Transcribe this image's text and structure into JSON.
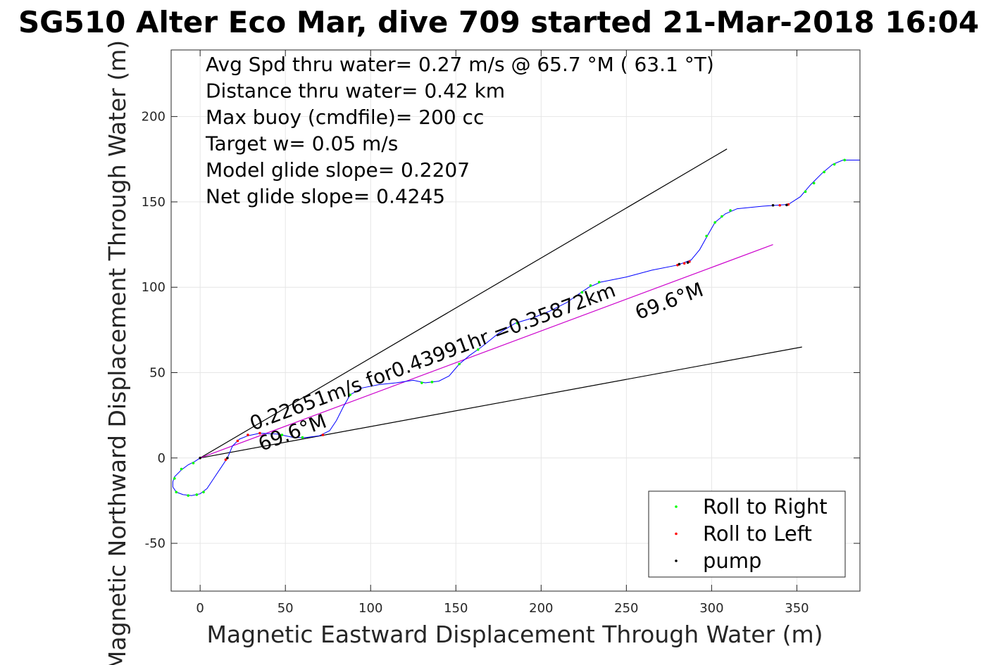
{
  "chart_data": {
    "type": "line",
    "title": "SG510 Alter Eco Mar, dive 709 started 21-Mar-2018 16:04",
    "xlabel": "Magnetic Eastward Displacement Through Water (m)",
    "ylabel": "Magnetic Northward Displacement Through Water (m)",
    "xlim": [
      -17,
      387
    ],
    "ylim": [
      -78,
      239
    ],
    "xticks": [
      0,
      50,
      100,
      150,
      200,
      250,
      300,
      350
    ],
    "yticks": [
      -50,
      0,
      50,
      100,
      150,
      200
    ],
    "xtick_labels": [
      "0",
      "50",
      "100",
      "150",
      "200",
      "250",
      "300",
      "350"
    ],
    "ytick_labels": [
      "-50",
      "0",
      "50",
      "100",
      "150",
      "200"
    ],
    "grid": true,
    "info_lines": [
      "Avg Spd thru water=  0.27 m/s @  65.7 °M ( 63.1 °T)",
      "Distance thru water=  0.42 km",
      "Max buoy (cmdfile)= 200 cc",
      "Target w= 0.05 m/s",
      "Model glide slope= 0.2207",
      "Net glide slope= 0.4245"
    ],
    "track": {
      "color": "#0000ff",
      "points": [
        [
          0,
          0
        ],
        [
          -3,
          -2
        ],
        [
          -7,
          -4
        ],
        [
          -11,
          -7
        ],
        [
          -15,
          -11
        ],
        [
          -16,
          -14
        ],
        [
          -16,
          -17
        ],
        [
          -14,
          -20
        ],
        [
          -10,
          -21.5
        ],
        [
          -5,
          -22
        ],
        [
          0,
          -21
        ],
        [
          4,
          -18
        ],
        [
          8,
          -12
        ],
        [
          12,
          -6
        ],
        [
          16,
          0
        ],
        [
          19,
          7
        ],
        [
          23,
          11
        ],
        [
          28,
          13
        ],
        [
          35,
          14.5
        ],
        [
          45,
          14
        ],
        [
          55,
          12
        ],
        [
          62,
          12
        ],
        [
          70,
          13
        ],
        [
          76,
          16
        ],
        [
          80,
          22
        ],
        [
          84,
          30
        ],
        [
          88,
          37
        ],
        [
          95,
          41
        ],
        [
          105,
          43
        ],
        [
          115,
          44
        ],
        [
          125,
          45.5
        ],
        [
          132,
          44
        ],
        [
          140,
          45
        ],
        [
          146,
          48
        ],
        [
          152,
          55
        ],
        [
          158,
          60
        ],
        [
          165,
          65
        ],
        [
          175,
          73
        ],
        [
          185,
          79
        ],
        [
          195,
          82
        ],
        [
          205,
          86
        ],
        [
          215,
          91
        ],
        [
          222,
          96
        ],
        [
          228,
          100
        ],
        [
          235,
          103
        ],
        [
          250,
          106
        ],
        [
          265,
          110
        ],
        [
          280,
          113
        ],
        [
          288,
          116
        ],
        [
          293,
          122
        ],
        [
          298,
          131
        ],
        [
          302,
          138
        ],
        [
          308,
          143
        ],
        [
          315,
          146
        ],
        [
          330,
          147.5
        ],
        [
          345,
          148.5
        ],
        [
          352,
          153
        ],
        [
          358,
          160
        ],
        [
          365,
          167
        ],
        [
          371,
          172
        ],
        [
          377,
          174.5
        ],
        [
          387,
          174.5
        ]
      ]
    },
    "markers": {
      "right": {
        "color": "#00ff00",
        "points": [
          [
            -4,
            -3
          ],
          [
            -11,
            -6.5
          ],
          [
            -15,
            -12
          ],
          [
            -14,
            -20
          ],
          [
            -7,
            -22
          ],
          [
            -2,
            -21.5
          ],
          [
            2,
            -20
          ],
          [
            48,
            13.5
          ],
          [
            60,
            12
          ],
          [
            88,
            37
          ],
          [
            130,
            44
          ],
          [
            136,
            44.5
          ],
          [
            152,
            55
          ],
          [
            163,
            63.5
          ],
          [
            186,
            79
          ],
          [
            224,
            97
          ],
          [
            229,
            101
          ],
          [
            234,
            103
          ],
          [
            297,
            130
          ],
          [
            302,
            138
          ],
          [
            306,
            141.5
          ],
          [
            311,
            145
          ],
          [
            355,
            156
          ],
          [
            360,
            161
          ],
          [
            366,
            167.5
          ],
          [
            372,
            172
          ],
          [
            378,
            174.5
          ]
        ]
      },
      "left": {
        "color": "#ff0000",
        "points": [
          [
            15,
            -1
          ],
          [
            22,
            10
          ],
          [
            28,
            13.5
          ],
          [
            35,
            14.5
          ],
          [
            72,
            13.5
          ],
          [
            280,
            113
          ],
          [
            284,
            114
          ],
          [
            287,
            115
          ],
          [
            340,
            148
          ],
          [
            345,
            148.5
          ]
        ]
      },
      "pump": {
        "color": "#000000",
        "points": [
          [
            0,
            0
          ],
          [
            16,
            0
          ],
          [
            281,
            113.5
          ],
          [
            286,
            114.5
          ],
          [
            336,
            148
          ],
          [
            344,
            148.2
          ]
        ]
      }
    },
    "lines": [
      {
        "name": "upper-bound-line",
        "color": "#000000",
        "from": [
          0,
          0
        ],
        "to": [
          309,
          181
        ]
      },
      {
        "name": "lower-bound-line",
        "color": "#000000",
        "from": [
          0,
          0
        ],
        "to": [
          353,
          65
        ]
      },
      {
        "name": "net-heading-line",
        "color": "#cc00cc",
        "from": [
          0,
          0
        ],
        "to": [
          336,
          125
        ]
      }
    ],
    "annotations": [
      {
        "text": "0.22651m/s for0.43991hr =0.35872km",
        "x": 31,
        "y": 16,
        "angle": -20.4
      },
      {
        "text": "69.6°M",
        "x": 36,
        "y": 4,
        "angle": -20.4
      },
      {
        "text": "69.6°M",
        "x": 257,
        "y": 81,
        "angle": -20.4
      }
    ],
    "legend": {
      "location": "bottom-right",
      "entries": [
        {
          "label": "Roll to Right",
          "color": "#00ff00"
        },
        {
          "label": "Roll to Left",
          "color": "#ff0000"
        },
        {
          "label": "pump",
          "color": "#000000"
        }
      ]
    }
  }
}
